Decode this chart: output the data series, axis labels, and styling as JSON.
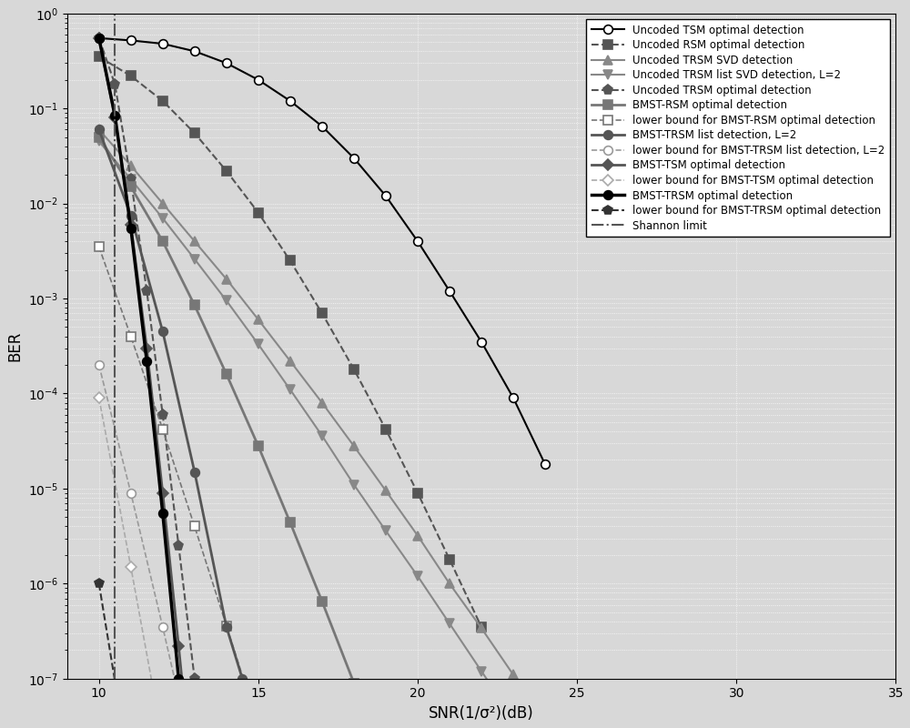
{
  "xlabel": "SNR(1/σ²)(dB)",
  "ylabel": "BER",
  "xlim": [
    9,
    35
  ],
  "ylim_log": [
    -7,
    0
  ],
  "xticks": [
    10,
    15,
    20,
    25,
    30,
    35
  ],
  "background_color": "#d8d8d8",
  "curves": [
    {
      "label": "Uncoded TSM optimal detection",
      "color": "#000000",
      "linestyle": "-",
      "marker": "o",
      "markerfacecolor": "white",
      "markeredgecolor": "#000000",
      "linewidth": 1.5,
      "markersize": 7,
      "x": [
        10,
        11,
        12,
        13,
        14,
        15,
        16,
        17,
        18,
        19,
        20,
        21,
        22,
        23,
        24
      ],
      "y": [
        0.55,
        0.52,
        0.48,
        0.4,
        0.3,
        0.2,
        0.12,
        0.065,
        0.03,
        0.012,
        0.004,
        0.0012,
        0.00035,
        9e-05,
        1.8e-05
      ]
    },
    {
      "label": "Uncoded RSM optimal detection",
      "color": "#555555",
      "linestyle": "--",
      "marker": "s",
      "markerfacecolor": "#555555",
      "markeredgecolor": "#555555",
      "linewidth": 1.5,
      "markersize": 7,
      "x": [
        10,
        11,
        12,
        13,
        14,
        15,
        16,
        17,
        18,
        19,
        20,
        21,
        22
      ],
      "y": [
        0.35,
        0.22,
        0.12,
        0.055,
        0.022,
        0.008,
        0.0025,
        0.0007,
        0.00018,
        4.2e-05,
        9e-06,
        1.8e-06,
        3.5e-07
      ]
    },
    {
      "label": "Uncoded TRSM SVD detection",
      "color": "#888888",
      "linestyle": "-",
      "marker": "^",
      "markerfacecolor": "#888888",
      "markeredgecolor": "#888888",
      "linewidth": 1.5,
      "markersize": 7,
      "x": [
        10,
        11,
        12,
        13,
        14,
        15,
        16,
        17,
        18,
        19,
        20,
        21,
        22,
        23,
        24
      ],
      "y": [
        0.06,
        0.025,
        0.01,
        0.004,
        0.0016,
        0.0006,
        0.00022,
        8e-05,
        2.8e-05,
        9.5e-06,
        3.2e-06,
        1e-06,
        3.4e-07,
        1.1e-07,
        3.5e-08
      ]
    },
    {
      "label": "Uncoded TRSM list SVD detection, L=2",
      "color": "#888888",
      "linestyle": "-",
      "marker": "v",
      "markerfacecolor": "#888888",
      "markeredgecolor": "#888888",
      "linewidth": 1.5,
      "markersize": 7,
      "x": [
        10,
        11,
        12,
        13,
        14,
        15,
        16,
        17,
        18,
        19,
        20,
        21,
        22,
        23,
        24
      ],
      "y": [
        0.045,
        0.018,
        0.007,
        0.0026,
        0.00095,
        0.00033,
        0.00011,
        3.6e-05,
        1.1e-05,
        3.6e-06,
        1.2e-06,
        3.8e-07,
        1.2e-07,
        3.8e-08,
        1.2e-08
      ]
    },
    {
      "label": "Uncoded TRSM optimal detection",
      "color": "#555555",
      "linestyle": "--",
      "marker": "p",
      "markerfacecolor": "#555555",
      "markeredgecolor": "#555555",
      "linewidth": 1.5,
      "markersize": 8,
      "x": [
        10,
        10.5,
        11,
        11.5,
        12,
        12.5,
        13
      ],
      "y": [
        0.55,
        0.18,
        0.018,
        0.0012,
        6e-05,
        2.5e-06,
        1e-07
      ]
    },
    {
      "label": "BMST-RSM optimal detection",
      "color": "#777777",
      "linestyle": "-",
      "marker": "s",
      "markerfacecolor": "#777777",
      "markeredgecolor": "#777777",
      "linewidth": 2.0,
      "markersize": 7,
      "x": [
        10,
        11,
        12,
        13,
        14,
        15,
        16,
        17,
        18,
        19,
        20,
        21,
        22
      ],
      "y": [
        0.05,
        0.015,
        0.004,
        0.00085,
        0.00016,
        2.8e-05,
        4.4e-06,
        6.5e-07,
        9e-08,
        1.2e-08,
        1.6e-09,
        2.1e-10,
        2.8e-11
      ]
    },
    {
      "label": "lower bound for BMST-RSM optimal detection",
      "color": "#777777",
      "linestyle": "--",
      "marker": "s",
      "markerfacecolor": "white",
      "markeredgecolor": "#777777",
      "linewidth": 1.2,
      "markersize": 7,
      "x": [
        10,
        11,
        12,
        13,
        14,
        15,
        16,
        17,
        18,
        19,
        20,
        21,
        22
      ],
      "y": [
        0.0035,
        0.0004,
        4.2e-05,
        4e-06,
        3.6e-07,
        3.2e-08,
        2.7e-09,
        2.2e-10,
        1.8e-11,
        1.4e-12,
        1.1e-13,
        8.8e-15,
        7e-16
      ]
    },
    {
      "label": "BMST-TRSM list detection, L=2",
      "color": "#555555",
      "linestyle": "-",
      "marker": "o",
      "markerfacecolor": "#555555",
      "markeredgecolor": "#555555",
      "linewidth": 2.0,
      "markersize": 7,
      "x": [
        10,
        11,
        12,
        13,
        14,
        14.5
      ],
      "y": [
        0.06,
        0.0075,
        0.00045,
        1.5e-05,
        3.5e-07,
        1e-07
      ]
    },
    {
      "label": "lower bound for BMST-TRSM list detection, L=2",
      "color": "#999999",
      "linestyle": "--",
      "marker": "o",
      "markerfacecolor": "white",
      "markeredgecolor": "#999999",
      "linewidth": 1.2,
      "markersize": 7,
      "x": [
        10,
        11,
        12,
        13,
        14,
        15
      ],
      "y": [
        0.0002,
        9e-06,
        3.5e-07,
        1.2e-08,
        4e-10,
        1.3e-11
      ]
    },
    {
      "label": "BMST-TSM optimal detection",
      "color": "#555555",
      "linestyle": "-",
      "marker": "D",
      "markerfacecolor": "#555555",
      "markeredgecolor": "#555555",
      "linewidth": 2.0,
      "markersize": 6,
      "x": [
        10,
        10.5,
        11,
        11.5,
        12,
        12.5,
        13
      ],
      "y": [
        0.55,
        0.08,
        0.006,
        0.0003,
        9e-06,
        2.2e-07,
        4.5e-09
      ]
    },
    {
      "label": "lower bound for BMST-TSM optimal detection",
      "color": "#aaaaaa",
      "linestyle": "--",
      "marker": "D",
      "markerfacecolor": "white",
      "markeredgecolor": "#aaaaaa",
      "linewidth": 1.2,
      "markersize": 6,
      "x": [
        10,
        11,
        12,
        13
      ],
      "y": [
        9e-05,
        1.5e-06,
        2.2e-08,
        2.8e-10
      ]
    },
    {
      "label": "BMST-TRSM optimal detection",
      "color": "#000000",
      "linestyle": "-",
      "marker": "o",
      "markerfacecolor": "#000000",
      "markeredgecolor": "#000000",
      "linewidth": 2.5,
      "markersize": 7,
      "x": [
        10,
        10.5,
        11,
        11.5,
        12,
        12.5,
        13
      ],
      "y": [
        0.55,
        0.085,
        0.0055,
        0.00022,
        5.5e-06,
        1e-07,
        1.8e-09
      ]
    },
    {
      "label": "lower bound for BMST-TRSM optimal detection",
      "color": "#333333",
      "linestyle": "--",
      "marker": "p",
      "markerfacecolor": "#333333",
      "markeredgecolor": "#333333",
      "linewidth": 1.5,
      "markersize": 7,
      "x": [
        10,
        11,
        12,
        13
      ],
      "y": [
        1e-06,
        9e-09,
        7.5e-11,
        5.8e-13
      ]
    },
    {
      "label": "Shannon limit",
      "color": "#555555",
      "linestyle": "-.",
      "marker": "None",
      "markerfacecolor": "none",
      "markeredgecolor": "none",
      "linewidth": 1.5,
      "markersize": 0,
      "x": [
        10.5,
        10.5
      ],
      "y": [
        1e-07,
        1.0
      ]
    }
  ]
}
